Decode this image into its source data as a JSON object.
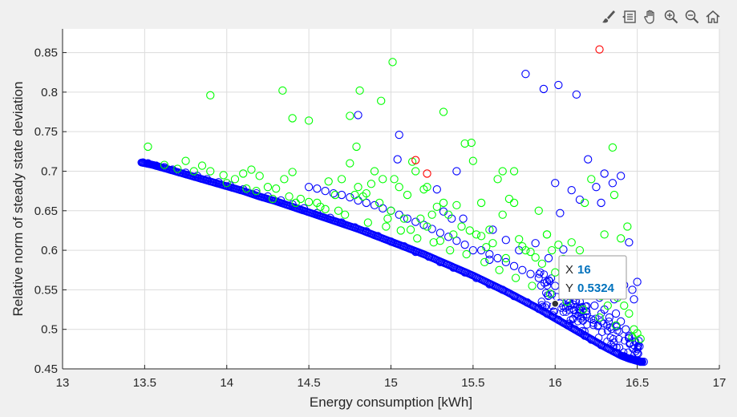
{
  "toolbar": {
    "items": [
      {
        "icon": "brush-icon"
      },
      {
        "icon": "data-tips-icon"
      },
      {
        "icon": "pan-hand-icon"
      },
      {
        "icon": "zoom-in-icon"
      },
      {
        "icon": "zoom-out-icon"
      },
      {
        "icon": "home-icon"
      }
    ]
  },
  "colors": {
    "background": "#f0f0f0",
    "axes": "#ffffff",
    "green": "#00ff00",
    "blue": "#0000ff",
    "red": "#ff0000",
    "datatip_value": "#0072bd"
  },
  "chart_data": {
    "type": "scatter",
    "title": "",
    "xlabel": "Energy consumption [kWh]",
    "ylabel": "Relative norm of steady state deviation",
    "xlim": [
      13,
      17
    ],
    "ylim": [
      0.45,
      0.88
    ],
    "xticks": [
      13,
      13.5,
      14,
      14.5,
      15,
      15.5,
      16,
      16.5,
      17
    ],
    "xtick_labels": [
      "13",
      "13.5",
      "14",
      "14.5",
      "15",
      "15.5",
      "16",
      "16.5",
      "17"
    ],
    "yticks": [
      0.45,
      0.5,
      0.55,
      0.6,
      0.65,
      0.7,
      0.75,
      0.8,
      0.85
    ],
    "ytick_labels": [
      "0.45",
      "0.5",
      "0.55",
      "0.6",
      "0.65",
      "0.7",
      "0.75",
      "0.8",
      "0.85"
    ],
    "grid": true,
    "front": {
      "description": "dense blue front",
      "x": [
        13.48,
        13.55,
        13.6,
        13.7,
        13.8,
        13.9,
        14.0,
        14.1,
        14.2,
        14.3,
        14.4,
        14.5,
        14.6,
        14.7,
        14.8,
        14.9,
        15.0,
        15.1,
        15.2,
        15.3,
        15.4,
        15.5,
        15.6,
        15.7,
        15.8,
        15.9,
        16.0,
        16.1,
        16.2,
        16.3,
        16.4,
        16.45,
        16.5,
        16.53
      ],
      "y": [
        0.711,
        0.708,
        0.705,
        0.699,
        0.693,
        0.687,
        0.681,
        0.675,
        0.668,
        0.662,
        0.655,
        0.648,
        0.641,
        0.634,
        0.627,
        0.619,
        0.611,
        0.603,
        0.595,
        0.586,
        0.577,
        0.568,
        0.558,
        0.548,
        0.537,
        0.526,
        0.514,
        0.502,
        0.49,
        0.478,
        0.467,
        0.463,
        0.46,
        0.459
      ]
    },
    "series": [
      {
        "color": "#0000ff",
        "x": [
          13.49,
          13.52,
          13.57,
          13.62,
          13.67,
          13.75,
          13.82,
          13.88,
          13.95,
          14.02,
          14.1,
          14.18,
          14.25,
          14.33,
          14.4,
          14.47,
          14.55,
          14.63,
          14.7,
          14.78,
          14.85,
          14.92,
          15.0,
          15.08,
          15.15,
          15.23,
          15.3,
          15.38,
          15.45,
          15.52,
          15.6,
          15.68,
          15.75,
          15.83,
          15.9,
          15.95,
          16.02,
          16.08,
          16.12,
          16.18,
          16.22,
          16.28,
          16.33,
          16.38,
          16.42,
          16.46,
          16.49,
          16.51,
          16.52,
          16.53,
          16.54,
          16.5,
          16.48,
          16.45,
          16.43,
          16.4,
          16.37,
          16.33,
          16.3,
          16.27,
          16.24,
          16.2,
          16.15,
          16.1,
          16.05,
          16.0,
          15.95,
          15.9,
          15.85,
          15.8,
          15.75,
          15.7,
          15.65,
          15.6,
          15.55,
          15.5,
          15.45,
          15.4,
          15.35,
          15.3,
          15.25,
          15.2,
          15.15,
          15.1,
          15.05,
          15.0,
          14.95,
          14.9,
          14.85,
          14.8,
          14.75,
          14.7,
          14.65,
          14.6,
          14.55,
          14.5,
          15.82,
          15.93,
          16.02,
          16.13,
          14.8,
          15.05,
          15.04,
          15.4,
          15.28,
          15.32,
          15.37,
          15.44,
          15.7,
          15.62,
          16.0,
          16.03,
          16.05,
          16.1,
          16.15,
          16.2,
          16.25,
          16.3,
          16.35,
          16.4,
          16.28,
          16.45,
          16.47,
          16.5,
          16.22,
          16.33,
          16.38,
          15.78,
          15.6,
          15.88,
          15.96,
          16.12,
          16.23,
          16.36,
          16.42,
          16.48
        ],
        "y": [
          0.711,
          0.71,
          0.707,
          0.705,
          0.702,
          0.698,
          0.694,
          0.69,
          0.686,
          0.682,
          0.677,
          0.672,
          0.668,
          0.663,
          0.658,
          0.653,
          0.647,
          0.641,
          0.635,
          0.629,
          0.624,
          0.618,
          0.611,
          0.605,
          0.598,
          0.592,
          0.585,
          0.578,
          0.572,
          0.565,
          0.557,
          0.55,
          0.542,
          0.534,
          0.526,
          0.52,
          0.512,
          0.505,
          0.5,
          0.492,
          0.487,
          0.48,
          0.475,
          0.47,
          0.466,
          0.463,
          0.461,
          0.46,
          0.459,
          0.459,
          0.459,
          0.47,
          0.48,
          0.49,
          0.5,
          0.51,
          0.52,
          0.515,
          0.525,
          0.54,
          0.53,
          0.545,
          0.535,
          0.545,
          0.55,
          0.555,
          0.56,
          0.565,
          0.57,
          0.575,
          0.58,
          0.585,
          0.59,
          0.595,
          0.6,
          0.6,
          0.607,
          0.612,
          0.617,
          0.622,
          0.627,
          0.632,
          0.636,
          0.64,
          0.645,
          0.65,
          0.653,
          0.657,
          0.66,
          0.663,
          0.667,
          0.67,
          0.672,
          0.675,
          0.678,
          0.68,
          0.823,
          0.804,
          0.809,
          0.797,
          0.771,
          0.746,
          0.715,
          0.7,
          0.677,
          0.649,
          0.64,
          0.64,
          0.613,
          0.626,
          0.685,
          0.647,
          0.601,
          0.676,
          0.664,
          0.715,
          0.68,
          0.697,
          0.685,
          0.694,
          0.66,
          0.61,
          0.55,
          0.56,
          0.575,
          0.555,
          0.57,
          0.6,
          0.588,
          0.609,
          0.59,
          0.575,
          0.555,
          0.538,
          0.556,
          0.538
        ]
      },
      {
        "color": "#00ff00",
        "x": [
          13.52,
          13.75,
          13.85,
          13.9,
          13.98,
          14.05,
          14.1,
          14.15,
          14.2,
          14.25,
          14.3,
          14.35,
          14.38,
          14.4,
          14.45,
          14.5,
          14.55,
          14.6,
          14.62,
          14.66,
          14.7,
          14.75,
          14.78,
          14.8,
          14.83,
          14.85,
          14.88,
          14.9,
          14.93,
          14.95,
          14.98,
          15.0,
          15.02,
          15.05,
          15.08,
          15.1,
          15.12,
          15.15,
          15.18,
          15.2,
          15.22,
          15.25,
          15.28,
          15.3,
          15.32,
          15.35,
          15.38,
          15.4,
          15.43,
          15.45,
          15.48,
          15.5,
          15.52,
          15.55,
          15.58,
          15.6,
          15.62,
          15.65,
          15.68,
          15.7,
          15.72,
          15.75,
          15.78,
          15.8,
          15.82,
          15.85,
          15.88,
          15.9,
          15.92,
          15.95,
          15.98,
          16.0,
          16.02,
          16.05,
          16.08,
          16.1,
          16.12,
          16.15,
          16.18,
          16.2,
          16.22,
          16.25,
          16.28,
          16.3,
          16.32,
          16.35,
          16.38,
          16.4,
          16.42,
          16.45,
          16.48,
          16.5,
          16.52,
          13.9,
          14.34,
          14.4,
          14.5,
          14.81,
          14.94,
          15.01,
          15.32,
          15.49,
          14.75,
          14.79,
          15.13,
          15.22,
          15.55,
          15.68,
          15.75,
          15.95,
          16.05,
          16.15,
          16.25,
          16.32,
          16.36,
          16.44,
          14.0,
          14.12,
          14.18,
          14.28,
          14.42,
          14.57,
          14.68,
          14.72,
          14.86,
          14.97,
          15.06,
          15.16,
          15.26,
          15.36,
          15.46,
          15.57,
          15.66,
          15.76,
          15.86,
          15.97,
          16.07,
          16.17,
          16.27,
          16.37,
          16.47,
          13.62,
          13.7,
          13.8
        ],
        "y": [
          0.731,
          0.713,
          0.707,
          0.7,
          0.695,
          0.69,
          0.697,
          0.702,
          0.694,
          0.68,
          0.678,
          0.69,
          0.668,
          0.699,
          0.665,
          0.661,
          0.66,
          0.652,
          0.687,
          0.67,
          0.69,
          0.71,
          0.67,
          0.68,
          0.668,
          0.672,
          0.684,
          0.7,
          0.66,
          0.69,
          0.64,
          0.65,
          0.69,
          0.68,
          0.64,
          0.67,
          0.626,
          0.7,
          0.64,
          0.677,
          0.63,
          0.645,
          0.655,
          0.612,
          0.66,
          0.645,
          0.62,
          0.657,
          0.63,
          0.735,
          0.625,
          0.713,
          0.62,
          0.618,
          0.604,
          0.626,
          0.609,
          0.69,
          0.7,
          0.59,
          0.665,
          0.7,
          0.614,
          0.605,
          0.6,
          0.598,
          0.591,
          0.65,
          0.583,
          0.62,
          0.6,
          0.572,
          0.607,
          0.589,
          0.565,
          0.61,
          0.58,
          0.578,
          0.66,
          0.552,
          0.69,
          0.55,
          0.542,
          0.62,
          0.53,
          0.73,
          0.54,
          0.615,
          0.53,
          0.52,
          0.5,
          0.495,
          0.488,
          0.796,
          0.802,
          0.767,
          0.764,
          0.802,
          0.789,
          0.838,
          0.775,
          0.736,
          0.77,
          0.731,
          0.712,
          0.68,
          0.66,
          0.645,
          0.66,
          0.62,
          0.58,
          0.6,
          0.58,
          0.56,
          0.67,
          0.63,
          0.685,
          0.678,
          0.675,
          0.665,
          0.66,
          0.655,
          0.65,
          0.645,
          0.635,
          0.63,
          0.625,
          0.615,
          0.61,
          0.6,
          0.595,
          0.585,
          0.575,
          0.565,
          0.555,
          0.545,
          0.535,
          0.525,
          0.515,
          0.505,
          0.49,
          0.708,
          0.703,
          0.7
        ]
      },
      {
        "color": "#ff0000",
        "x": [
          16.27,
          15.15,
          15.22
        ],
        "y": [
          0.854,
          0.714,
          0.697
        ]
      }
    ],
    "datatip": {
      "x_label": "X",
      "x_value": "16",
      "y_label": "Y",
      "y_value": "0.5324",
      "point": [
        16,
        0.5324
      ]
    }
  }
}
